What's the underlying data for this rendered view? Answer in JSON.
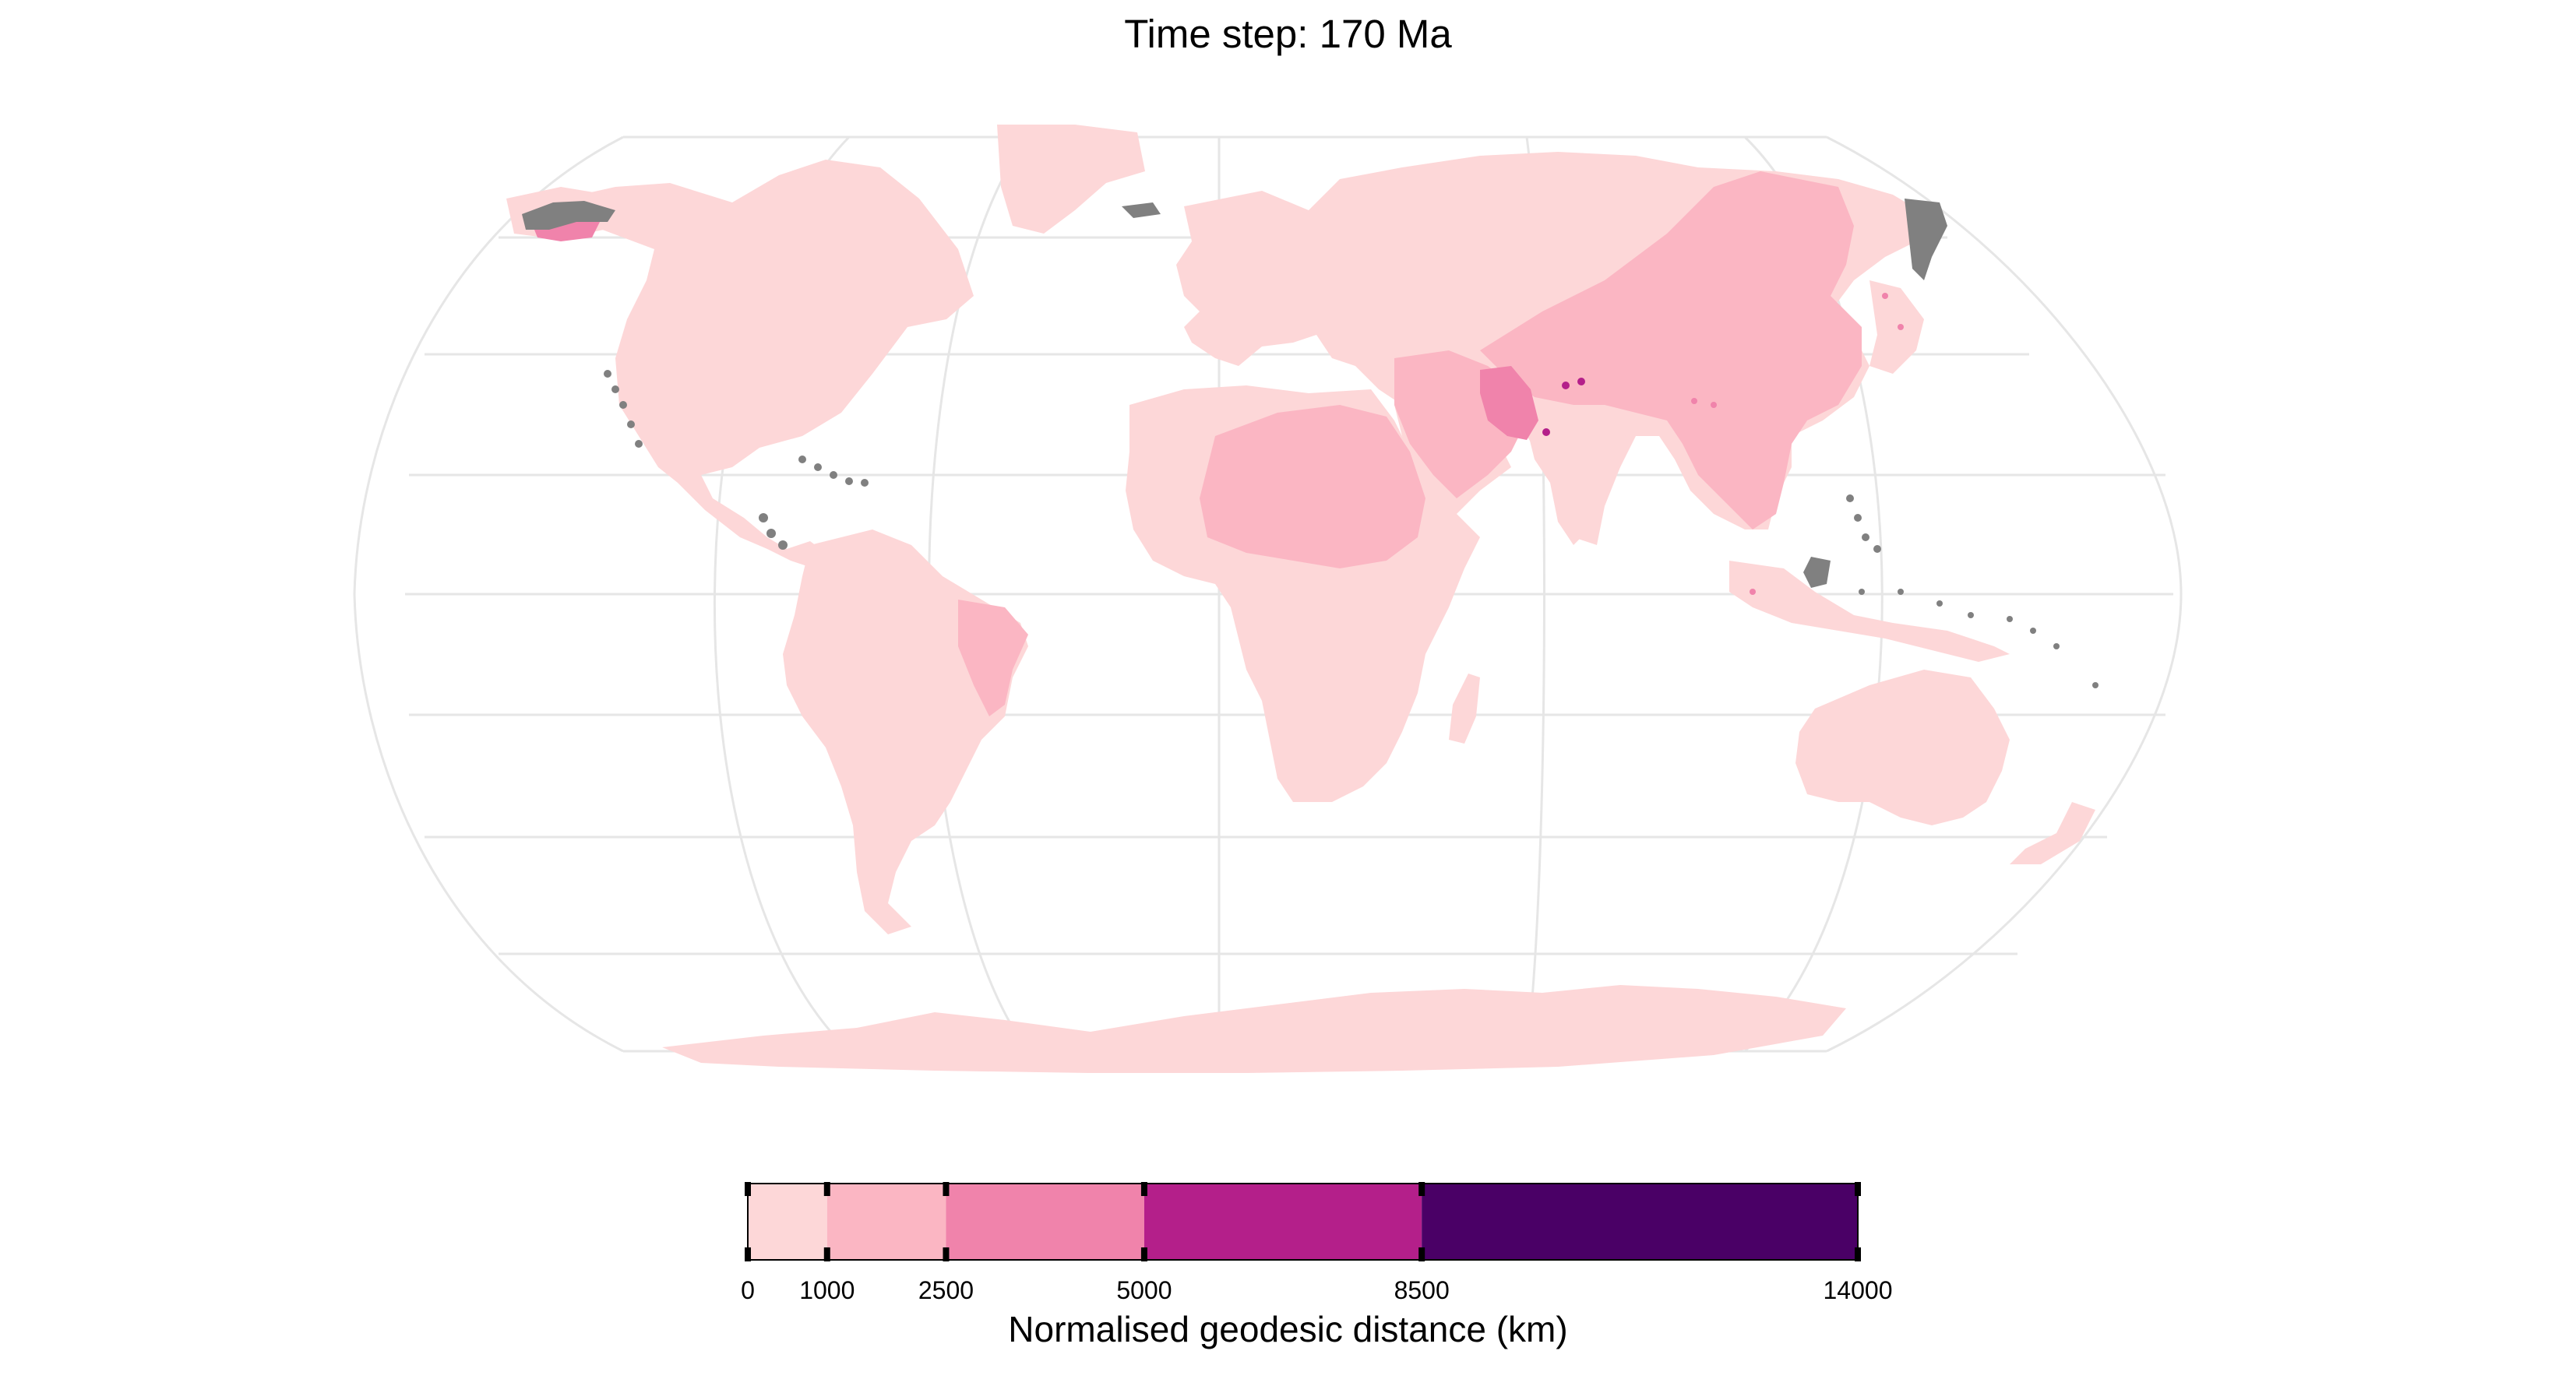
{
  "title": "Time step: 170 Ma",
  "legend": {
    "title": "Normalised geodesic distance (km)",
    "breaks": [
      0,
      1000,
      2500,
      5000,
      8500,
      14000
    ],
    "tick_labels": [
      "0",
      "1000",
      "2500",
      "5000",
      "8500",
      "14000"
    ],
    "colors": [
      "#fdd7d8",
      "#fbb6c3",
      "#f083ab",
      "#b41f8a",
      "#4a0066"
    ],
    "no_data_color": "#808080"
  },
  "colors": {
    "graticule": "#e6e6e6",
    "background": "#ffffff"
  }
}
